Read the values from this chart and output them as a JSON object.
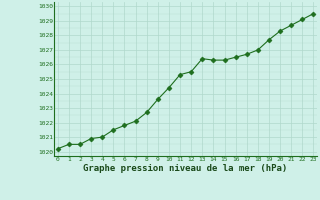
{
  "x": [
    0,
    1,
    2,
    3,
    4,
    5,
    6,
    7,
    8,
    9,
    10,
    11,
    12,
    13,
    14,
    15,
    16,
    17,
    18,
    19,
    20,
    21,
    22,
    23
  ],
  "y": [
    1020.2,
    1020.5,
    1020.5,
    1020.9,
    1021.0,
    1021.5,
    1021.8,
    1022.1,
    1022.7,
    1023.6,
    1024.4,
    1025.3,
    1025.5,
    1026.4,
    1026.3,
    1026.3,
    1026.5,
    1026.7,
    1027.0,
    1027.7,
    1028.3,
    1028.7,
    1029.1,
    1029.5
  ],
  "line_color": "#1e6e1e",
  "marker": "D",
  "marker_size": 2.5,
  "linewidth": 0.8,
  "bg_color": "#cff0e8",
  "grid_color": "#b0d8cc",
  "xlabel": "Graphe pression niveau de la mer (hPa)",
  "xlabel_fontsize": 6.5,
  "xlabel_color": "#1a4a1a",
  "tick_color": "#1e6e1e",
  "ylabel_ticks": [
    1020,
    1021,
    1022,
    1023,
    1024,
    1025,
    1026,
    1027,
    1028,
    1029,
    1030
  ],
  "xticks": [
    0,
    1,
    2,
    3,
    4,
    5,
    6,
    7,
    8,
    9,
    10,
    11,
    12,
    13,
    14,
    15,
    16,
    17,
    18,
    19,
    20,
    21,
    22,
    23
  ],
  "ylim": [
    1019.7,
    1030.3
  ],
  "xlim": [
    -0.3,
    23.3
  ]
}
